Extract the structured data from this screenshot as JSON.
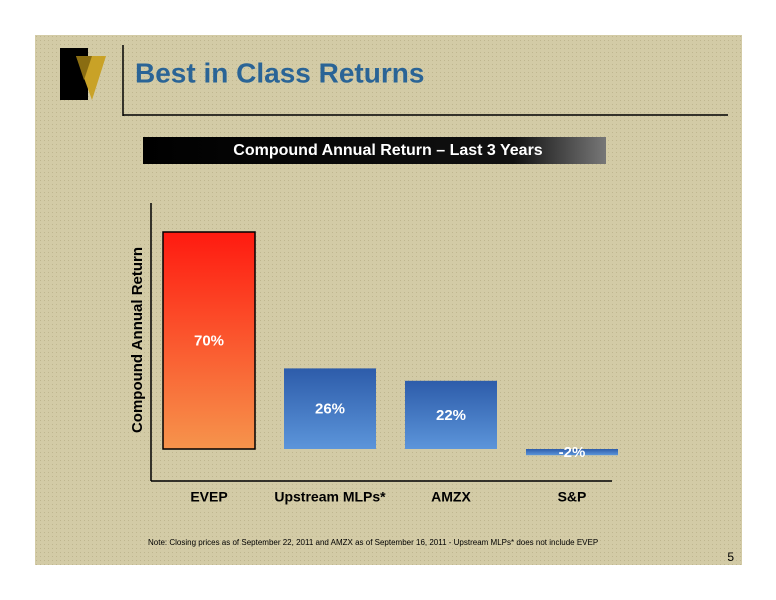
{
  "header": {
    "title": "Best in Class Returns"
  },
  "chart_data": {
    "type": "bar",
    "title": "Compound Annual Return – Last 3 Years",
    "y_label": "Compound Annual Return",
    "categories": [
      "EVEP",
      "Upstream MLPs*",
      "AMZX",
      "S&P"
    ],
    "values": [
      70,
      26,
      22,
      -2
    ],
    "value_labels": [
      "70%",
      "26%",
      "22%",
      "-2%"
    ],
    "gradients": [
      [
        "#ff1a10",
        "#f6944c"
      ],
      [
        "#2d5caa",
        "#5c95da"
      ],
      [
        "#2d5caa",
        "#5c95da"
      ],
      [
        "#2d5caa",
        "#5c95da"
      ]
    ]
  },
  "footer": {
    "note": "Note: Closing prices as of September 22, 2011 and AMZX as of September 16, 2011 - Upstream MLPs* does not include EVEP",
    "page_number": "5"
  }
}
